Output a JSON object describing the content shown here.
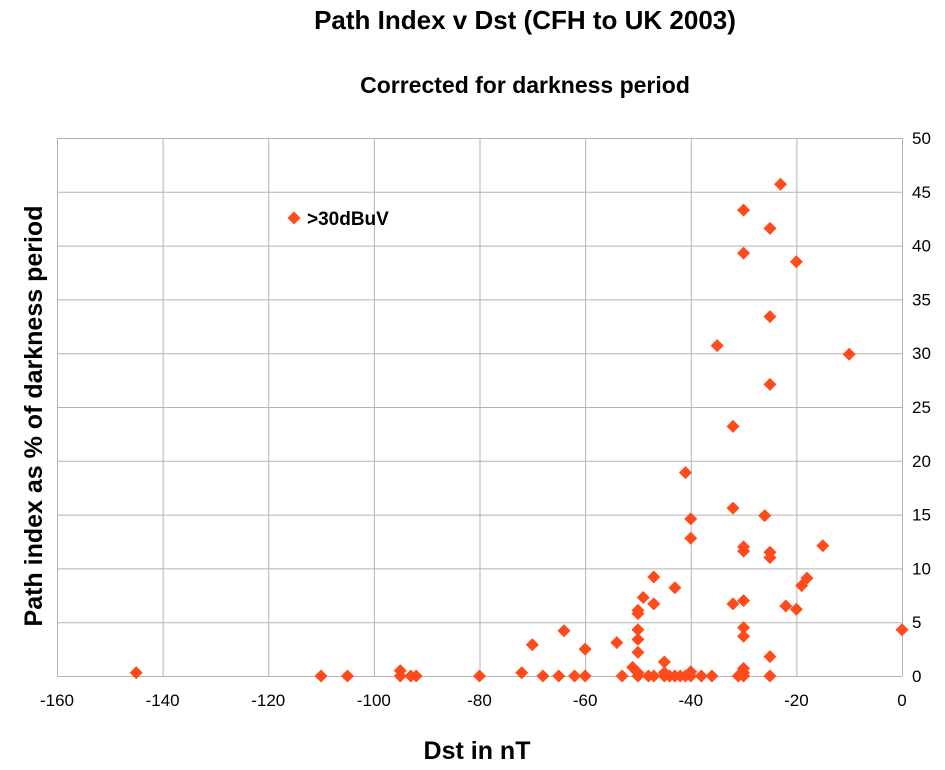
{
  "chart_data": {
    "type": "scatter",
    "title": "Path Index v Dst (CFH to UK 2003)",
    "subtitle": "Corrected for darkness period",
    "xlabel": "Dst in  nT",
    "ylabel": "Path index as % of darkness period",
    "xlim": [
      -160,
      0
    ],
    "ylim": [
      0,
      50
    ],
    "x_ticks": [
      -160,
      -140,
      -120,
      -100,
      -80,
      -60,
      -40,
      -20,
      0
    ],
    "y_ticks": [
      0,
      5,
      10,
      15,
      20,
      25,
      30,
      35,
      40,
      45,
      50
    ],
    "grid": true,
    "legend_position": "top-left",
    "marker_color": "#FF4A1C",
    "series": [
      {
        "name": ">30dBuV",
        "marker": "diamond",
        "points": [
          [
            -145,
            0.3
          ],
          [
            -110,
            0
          ],
          [
            -105,
            0
          ],
          [
            -95,
            0.5
          ],
          [
            -95,
            0
          ],
          [
            -93,
            0
          ],
          [
            -92,
            0
          ],
          [
            -80,
            0
          ],
          [
            -72,
            0.3
          ],
          [
            -70,
            2.9
          ],
          [
            -68,
            0
          ],
          [
            -65,
            0
          ],
          [
            -64,
            4.2
          ],
          [
            -62,
            0
          ],
          [
            -60,
            2.5
          ],
          [
            -60,
            0
          ],
          [
            -54,
            3.1
          ],
          [
            -53,
            0
          ],
          [
            -51,
            0.8
          ],
          [
            -50,
            6.1
          ],
          [
            -50,
            5.8
          ],
          [
            -50,
            4.3
          ],
          [
            -50,
            3.4
          ],
          [
            -50,
            2.2
          ],
          [
            -50,
            0.3
          ],
          [
            -50,
            0
          ],
          [
            -49,
            7.3
          ],
          [
            -48,
            0
          ],
          [
            -47,
            9.2
          ],
          [
            -47,
            6.7
          ],
          [
            -47,
            0
          ],
          [
            -45,
            1.3
          ],
          [
            -45,
            0.3
          ],
          [
            -45,
            0
          ],
          [
            -44,
            0
          ],
          [
            -43,
            8.2
          ],
          [
            -43,
            0
          ],
          [
            -42,
            0
          ],
          [
            -41,
            18.9
          ],
          [
            -41,
            0
          ],
          [
            -40,
            14.6
          ],
          [
            -40,
            12.8
          ],
          [
            -40,
            0.4
          ],
          [
            -40,
            0
          ],
          [
            -38,
            0
          ],
          [
            -36,
            0
          ],
          [
            -35,
            30.7
          ],
          [
            -32,
            23.2
          ],
          [
            -32,
            15.6
          ],
          [
            -32,
            6.7
          ],
          [
            -31,
            0
          ],
          [
            -30,
            43.3
          ],
          [
            -30,
            39.3
          ],
          [
            -30,
            12.0
          ],
          [
            -30,
            11.6
          ],
          [
            -30,
            7.0
          ],
          [
            -30,
            4.5
          ],
          [
            -30,
            3.7
          ],
          [
            -30,
            0.7
          ],
          [
            -30,
            0.3
          ],
          [
            -30,
            0
          ],
          [
            -26,
            14.9
          ],
          [
            -25,
            41.6
          ],
          [
            -25,
            33.4
          ],
          [
            -25,
            27.1
          ],
          [
            -25,
            11.5
          ],
          [
            -25,
            11.0
          ],
          [
            -25,
            1.8
          ],
          [
            -25,
            0
          ],
          [
            -23,
            45.7
          ],
          [
            -22,
            6.5
          ],
          [
            -20,
            38.5
          ],
          [
            -20,
            6.2
          ],
          [
            -19,
            8.4
          ],
          [
            -18,
            9.1
          ],
          [
            -15,
            12.1
          ],
          [
            -10,
            29.9
          ],
          [
            0,
            4.3
          ]
        ]
      }
    ]
  }
}
